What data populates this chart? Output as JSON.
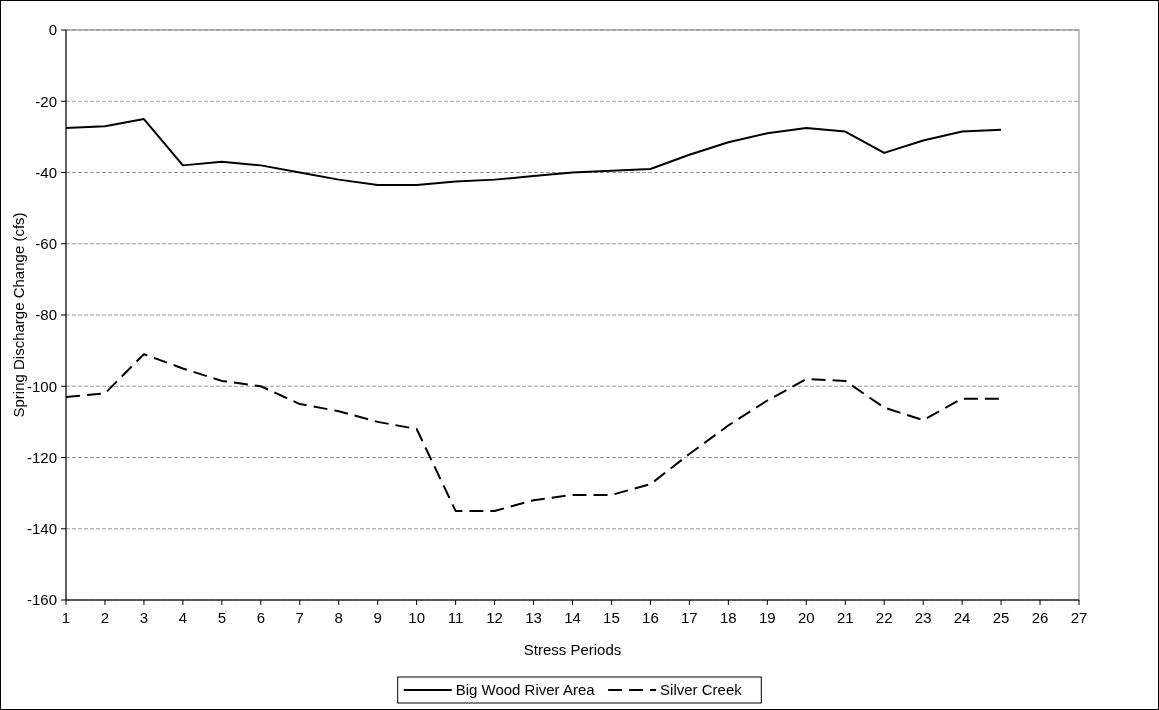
{
  "chart_data": {
    "type": "line",
    "xlabel": "Stress Periods",
    "ylabel": "Spring Discharge Change (cfs)",
    "x": [
      1,
      2,
      3,
      4,
      5,
      6,
      7,
      8,
      9,
      10,
      11,
      12,
      13,
      14,
      15,
      16,
      17,
      18,
      19,
      20,
      21,
      22,
      23,
      24,
      25
    ],
    "series": [
      {
        "name": "Big Wood River Area",
        "color": "#000000",
        "line_style": "solid",
        "values": [
          -27.5,
          -27,
          -25,
          -38,
          -37,
          -38,
          -40,
          -42,
          -43.5,
          -43.5,
          -42.5,
          -42,
          -41,
          -40,
          -39.5,
          -39,
          -35,
          -31.5,
          -29,
          -27.5,
          -28.5,
          -34.5,
          -31,
          -28.5,
          -28
        ]
      },
      {
        "name": "Silver Creek",
        "color": "#000000",
        "line_style": "dashed",
        "values": [
          -103,
          -102,
          -91,
          -95,
          -98.5,
          -100,
          -105,
          -107,
          -110,
          -112,
          -135,
          -135,
          -132,
          -130.5,
          -130.5,
          -127.5,
          -119,
          -111,
          -104,
          -98,
          -98.5,
          -106,
          -109.5,
          -103.5,
          -103.5
        ]
      }
    ],
    "xlim": [
      1,
      27
    ],
    "xticks": [
      1,
      2,
      3,
      4,
      5,
      6,
      7,
      8,
      9,
      10,
      11,
      12,
      13,
      14,
      15,
      16,
      17,
      18,
      19,
      20,
      21,
      22,
      23,
      24,
      25,
      26,
      27
    ],
    "ylim": [
      -160,
      0
    ],
    "yticks": [
      -160,
      -140,
      -120,
      -100,
      -80,
      -60,
      -40,
      -20,
      0
    ],
    "grid": "y",
    "legend": "bottom",
    "marker": "none"
  }
}
